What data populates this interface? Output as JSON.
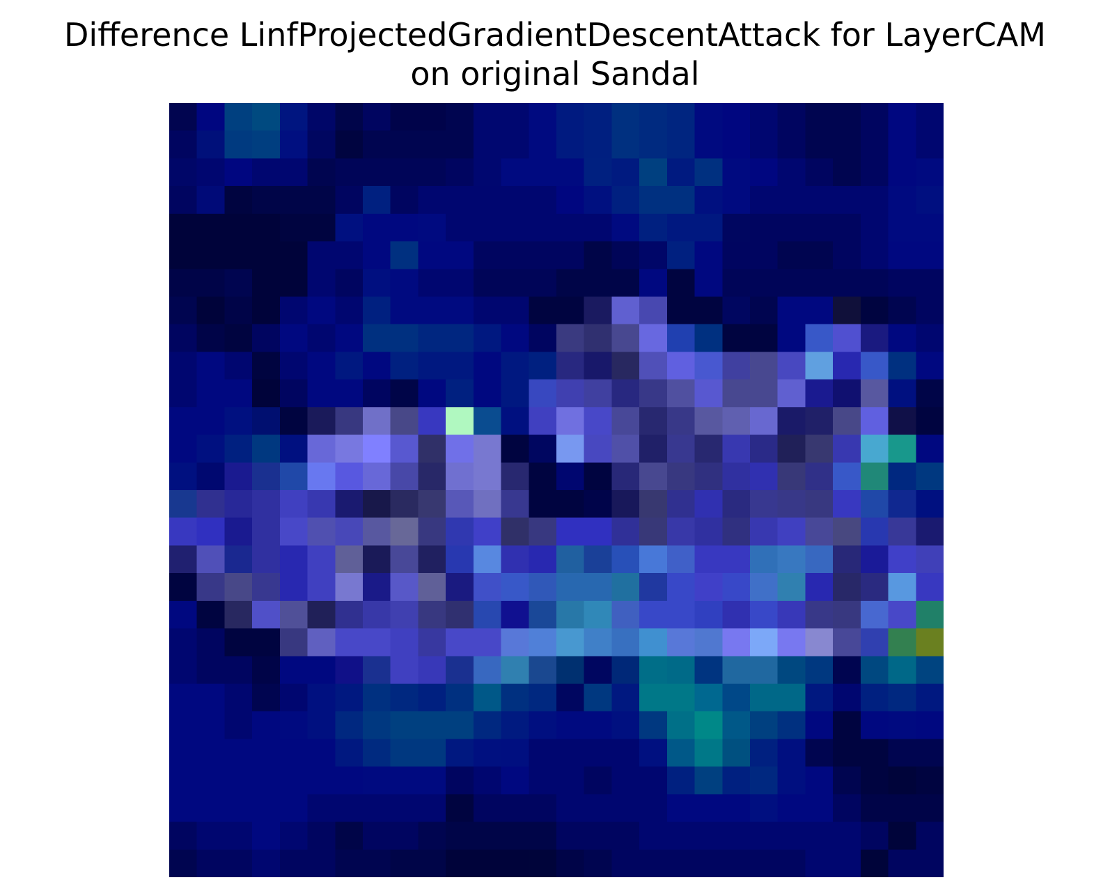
{
  "chart_data": {
    "type": "heatmap",
    "title_line1": "Difference LinfProjectedGradientDescentAttack for LayerCAM",
    "title_line2": "on original Sandal",
    "xlabel": "",
    "ylabel": "",
    "axes_visible": false,
    "grid": false,
    "legend": "none",
    "rows": 28,
    "cols": 28,
    "pixels": [
      [
        "#010550",
        "#000680",
        "#004080",
        "#004a80",
        "#001580",
        "#000668",
        "#00054a",
        "#000560",
        "#00034a",
        "#00034a",
        "#000550",
        "#000770",
        "#000770",
        "#000a80",
        "#001a80",
        "#001f80",
        "#003080",
        "#002a80",
        "#002580",
        "#000a80",
        "#000680",
        "#000670",
        "#000560",
        "#000550",
        "#000550",
        "#000560",
        "#000780",
        "#000670"
      ],
      [
        "#000560",
        "#00107a",
        "#003a80",
        "#003e80",
        "#000f80",
        "#000660",
        "#000440",
        "#000550",
        "#000550",
        "#000550",
        "#000550",
        "#000770",
        "#000770",
        "#000a80",
        "#001a80",
        "#001f80",
        "#003080",
        "#002a80",
        "#002580",
        "#000a80",
        "#000680",
        "#000670",
        "#000560",
        "#000550",
        "#000550",
        "#000560",
        "#000780",
        "#000670"
      ],
      [
        "#000668",
        "#000670",
        "#000680",
        "#000670",
        "#000670",
        "#000550",
        "#000558",
        "#000558",
        "#000558",
        "#000558",
        "#000560",
        "#000770",
        "#000a80",
        "#000a80",
        "#000a80",
        "#002080",
        "#001a80",
        "#004080",
        "#001a80",
        "#003080",
        "#000a80",
        "#000680",
        "#000670",
        "#000560",
        "#000550",
        "#000560",
        "#000780",
        "#000a80"
      ],
      [
        "#000560",
        "#000a78",
        "#000440",
        "#000548",
        "#000548",
        "#000548",
        "#000560",
        "#002080",
        "#000560",
        "#000670",
        "#000670",
        "#000670",
        "#000670",
        "#000670",
        "#000680",
        "#001080",
        "#002080",
        "#003080",
        "#003080",
        "#001080",
        "#000a80",
        "#000670",
        "#000670",
        "#000670",
        "#000670",
        "#000670",
        "#000a80",
        "#000f80"
      ],
      [
        "#00033a",
        "#00033a",
        "#00033a",
        "#00033a",
        "#000440",
        "#000440",
        "#001080",
        "#000880",
        "#000880",
        "#000a80",
        "#000670",
        "#000670",
        "#000670",
        "#000670",
        "#000670",
        "#000670",
        "#000a80",
        "#002080",
        "#001880",
        "#001880",
        "#000660",
        "#000560",
        "#000560",
        "#000560",
        "#000560",
        "#000670",
        "#000a80",
        "#000a80"
      ],
      [
        "#00033a",
        "#00033a",
        "#00033a",
        "#00033a",
        "#00033a",
        "#000670",
        "#000670",
        "#000880",
        "#003080",
        "#000880",
        "#000880",
        "#000560",
        "#000560",
        "#000560",
        "#000560",
        "#000548",
        "#000558",
        "#000668",
        "#002080",
        "#000880",
        "#000560",
        "#000560",
        "#000550",
        "#000550",
        "#000560",
        "#000670",
        "#000880",
        "#000880"
      ],
      [
        "#000448",
        "#000448",
        "#000550",
        "#00033a",
        "#00033a",
        "#000670",
        "#000560",
        "#000f80",
        "#000a80",
        "#000670",
        "#000670",
        "#000558",
        "#000558",
        "#000558",
        "#000548",
        "#000548",
        "#000548",
        "#000880",
        "#000440",
        "#000880",
        "#000558",
        "#000558",
        "#000558",
        "#000558",
        "#000558",
        "#000558",
        "#000560",
        "#000560"
      ],
      [
        "#000550",
        "#00033a",
        "#000448",
        "#00033a",
        "#000670",
        "#000880",
        "#000670",
        "#002080",
        "#000a80",
        "#000a80",
        "#000a80",
        "#000670",
        "#000670",
        "#000440",
        "#000440",
        "#1a1a60",
        "#6060d0",
        "#4848b0",
        "#000440",
        "#000440",
        "#000660",
        "#000550",
        "#000880",
        "#000880",
        "#10103a",
        "#000440",
        "#000550",
        "#000560"
      ],
      [
        "#000560",
        "#000448",
        "#000440",
        "#000560",
        "#000880",
        "#000670",
        "#000880",
        "#003080",
        "#003080",
        "#002680",
        "#002680",
        "#001880",
        "#000880",
        "#000560",
        "#3a3a80",
        "#303070",
        "#484890",
        "#6868e0",
        "#2040b0",
        "#003080",
        "#000440",
        "#000440",
        "#000880",
        "#3858c8",
        "#5050d0",
        "#1a1a80",
        "#000880",
        "#000670"
      ],
      [
        "#000670",
        "#000880",
        "#000670",
        "#000440",
        "#000670",
        "#000880",
        "#001880",
        "#000880",
        "#002080",
        "#001880",
        "#001880",
        "#000880",
        "#001880",
        "#002080",
        "#282880",
        "#18186a",
        "#282860",
        "#5050b8",
        "#6060e0",
        "#4858d0",
        "#4040a0",
        "#484890",
        "#4848c0",
        "#60a0e0",
        "#2828b0",
        "#3858c8",
        "#003080",
        "#000880"
      ],
      [
        "#000670",
        "#000880",
        "#000880",
        "#00033a",
        "#000560",
        "#000880",
        "#000880",
        "#000560",
        "#000548",
        "#000880",
        "#002080",
        "#000880",
        "#001880",
        "#3848c0",
        "#4040b0",
        "#4040a0",
        "#282880",
        "#383888",
        "#5050a0",
        "#5858d0",
        "#484890",
        "#484890",
        "#6060d0",
        "#1a1a90",
        "#101070",
        "#5858a0",
        "#001080",
        "#000548"
      ],
      [
        "#000880",
        "#000880",
        "#001080",
        "#000f70",
        "#000440",
        "#1a1a5a",
        "#383880",
        "#7070c8",
        "#484888",
        "#3838c0",
        "#b0f8c0",
        "#0a4c90",
        "#001080",
        "#4040c0",
        "#7070e0",
        "#4848c8",
        "#484898",
        "#282870",
        "#383888",
        "#5858a0",
        "#6060b0",
        "#6868d0",
        "#1a1a68",
        "#202068",
        "#484888",
        "#6060e0",
        "#101048",
        "#000440"
      ],
      [
        "#000880",
        "#001080",
        "#002080",
        "#003880",
        "#001080",
        "#6868d8",
        "#7878e0",
        "#8080ff",
        "#5858d0",
        "#303068",
        "#7070e8",
        "#7878d0",
        "#000440",
        "#000660",
        "#7898f0",
        "#4848c0",
        "#5050a8",
        "#202068",
        "#383890",
        "#282870",
        "#3838b0",
        "#2a2a88",
        "#202058",
        "#383870",
        "#3838b0",
        "#48a8d0",
        "#18988c",
        "#000880"
      ],
      [
        "#001080",
        "#000870",
        "#1a1a90",
        "#1a3090",
        "#2048a8",
        "#6878f0",
        "#5858e0",
        "#6868d8",
        "#4848a8",
        "#282868",
        "#7070d0",
        "#7878d0",
        "#282870",
        "#000440",
        "#000670",
        "#000440",
        "#282878",
        "#484890",
        "#383880",
        "#303080",
        "#3030a0",
        "#3030b0",
        "#383878",
        "#303088",
        "#3858c8",
        "#208878",
        "#002880",
        "#003880"
      ],
      [
        "#183890",
        "#303090",
        "#282898",
        "#3030a0",
        "#4040c0",
        "#3838b0",
        "#1a1a70",
        "#18184a",
        "#2a2a60",
        "#383870",
        "#5858b8",
        "#7070c0",
        "#383890",
        "#000440",
        "#000440",
        "#00044a",
        "#18185a",
        "#383870",
        "#303090",
        "#3030b0",
        "#2a2a80",
        "#383890",
        "#383888",
        "#383880",
        "#3838c0",
        "#2048a8",
        "#102890",
        "#001080"
      ],
      [
        "#3838c0",
        "#3030c0",
        "#1a1a90",
        "#3030a0",
        "#4848c8",
        "#5050b0",
        "#4848b8",
        "#5858a0",
        "#686898",
        "#383880",
        "#3038b0",
        "#4040c8",
        "#303068",
        "#383880",
        "#3030c0",
        "#3030c0",
        "#303098",
        "#383878",
        "#3838a8",
        "#3030a0",
        "#303080",
        "#3838b0",
        "#4040c0",
        "#484898",
        "#484880",
        "#2838b0",
        "#383898",
        "#1a1a70"
      ],
      [
        "#202070",
        "#5050b8",
        "#1a2890",
        "#3030a0",
        "#2828b0",
        "#4040c0",
        "#606098",
        "#1a1a58",
        "#484898",
        "#202060",
        "#2838b0",
        "#5888e0",
        "#3030b0",
        "#2828b0",
        "#2060a0",
        "#1a4098",
        "#2850b8",
        "#4878d8",
        "#4060c8",
        "#3838c0",
        "#3838c0",
        "#3070b8",
        "#3878c0",
        "#3868c0",
        "#282878",
        "#1a1a98",
        "#4040c8",
        "#4040b8"
      ],
      [
        "#000440",
        "#383888",
        "#484888",
        "#383890",
        "#2828b0",
        "#4040c0",
        "#7878d0",
        "#1a1a88",
        "#5858c8",
        "#606098",
        "#1a1a80",
        "#4050c8",
        "#3858c8",
        "#3058b8",
        "#2868b0",
        "#2868b0",
        "#2070a0",
        "#2038a0",
        "#3848c8",
        "#4040c8",
        "#3848c8",
        "#4070c8",
        "#3080b0",
        "#2828b0",
        "#282868",
        "#2a2a80",
        "#5898e0",
        "#3838c0"
      ],
      [
        "#000880",
        "#000440",
        "#282860",
        "#5050c8",
        "#505098",
        "#202058",
        "#303090",
        "#3838a8",
        "#4040b0",
        "#383880",
        "#303070",
        "#2848b0",
        "#101090",
        "#1a4898",
        "#2878a8",
        "#3088b8",
        "#4060c0",
        "#3848c8",
        "#3848c8",
        "#3040c0",
        "#3030b0",
        "#3848c8",
        "#3838b8",
        "#383888",
        "#383880",
        "#4868d0",
        "#4848c8",
        "#208068"
      ],
      [
        "#000670",
        "#000560",
        "#000440",
        "#000440",
        "#383880",
        "#6060c0",
        "#4848c8",
        "#4848c8",
        "#4040c0",
        "#3838a0",
        "#4848c8",
        "#4848c8",
        "#5878d8",
        "#5080d8",
        "#4898d0",
        "#4080c8",
        "#3870c0",
        "#4090d0",
        "#5878d8",
        "#5078d0",
        "#7878f0",
        "#7ca8f8",
        "#7878f0",
        "#8888d0",
        "#484898",
        "#3040b0",
        "#338050",
        "#6a8020"
      ],
      [
        "#000670",
        "#000560",
        "#000560",
        "#000448",
        "#000880",
        "#000880",
        "#101088",
        "#1a3090",
        "#4040c0",
        "#3838b8",
        "#1a3090",
        "#3868c0",
        "#3080b0",
        "#1a4890",
        "#003070",
        "#000660",
        "#002878",
        "#006e88",
        "#006a88",
        "#003480",
        "#2068a0",
        "#2068a0",
        "#004880",
        "#003880",
        "#000550",
        "#004880",
        "#006888",
        "#004480"
      ],
      [
        "#000880",
        "#000880",
        "#000670",
        "#000550",
        "#000670",
        "#001080",
        "#001880",
        "#003080",
        "#002880",
        "#002080",
        "#003080",
        "#005888",
        "#003080",
        "#002880",
        "#000660",
        "#003880",
        "#001880",
        "#007888",
        "#007888",
        "#006890",
        "#004888",
        "#006888",
        "#006888",
        "#001880",
        "#000670",
        "#002080",
        "#002880",
        "#001880"
      ],
      [
        "#000880",
        "#000880",
        "#000670",
        "#000880",
        "#000a80",
        "#001080",
        "#002880",
        "#003880",
        "#004080",
        "#004080",
        "#004080",
        "#002880",
        "#001a80",
        "#000f80",
        "#000a80",
        "#000a80",
        "#001080",
        "#003880",
        "#007088",
        "#008888",
        "#005888",
        "#004080",
        "#003080",
        "#000880",
        "#000440",
        "#000880",
        "#000a80",
        "#000880"
      ],
      [
        "#000880",
        "#000880",
        "#000880",
        "#000880",
        "#000880",
        "#000880",
        "#001880",
        "#002a80",
        "#003880",
        "#003880",
        "#001880",
        "#001080",
        "#000f80",
        "#000670",
        "#000670",
        "#000670",
        "#000670",
        "#001080",
        "#005888",
        "#007888",
        "#005080",
        "#002080",
        "#000f80",
        "#000550",
        "#000440",
        "#000440",
        "#000550",
        "#000550"
      ],
      [
        "#000880",
        "#000880",
        "#000880",
        "#000880",
        "#000880",
        "#000880",
        "#000880",
        "#000a80",
        "#000a80",
        "#000a80",
        "#000560",
        "#000670",
        "#000880",
        "#000670",
        "#000670",
        "#000560",
        "#000670",
        "#000670",
        "#002080",
        "#004080",
        "#002080",
        "#002880",
        "#000f80",
        "#000880",
        "#000550",
        "#000440",
        "#00043a",
        "#000440"
      ],
      [
        "#000880",
        "#000880",
        "#000880",
        "#000880",
        "#000880",
        "#000670",
        "#000670",
        "#000670",
        "#000670",
        "#000670",
        "#000440",
        "#000560",
        "#000560",
        "#000560",
        "#000670",
        "#000670",
        "#000670",
        "#000670",
        "#000880",
        "#000880",
        "#000880",
        "#000f80",
        "#000880",
        "#000880",
        "#000560",
        "#000448",
        "#000448",
        "#000448"
      ],
      [
        "#000560",
        "#000670",
        "#000670",
        "#000880",
        "#000670",
        "#000560",
        "#000548",
        "#000560",
        "#000560",
        "#000550",
        "#000548",
        "#000548",
        "#000548",
        "#000548",
        "#000560",
        "#000560",
        "#000560",
        "#000670",
        "#000670",
        "#000670",
        "#000670",
        "#000670",
        "#000670",
        "#000670",
        "#000670",
        "#000560",
        "#00043a",
        "#000560"
      ],
      [
        "#000550",
        "#000560",
        "#000560",
        "#000670",
        "#000560",
        "#000560",
        "#000550",
        "#000550",
        "#000548",
        "#000548",
        "#00033a",
        "#00033a",
        "#00033a",
        "#00043a",
        "#000448",
        "#000550",
        "#000560",
        "#000560",
        "#000560",
        "#000560",
        "#000560",
        "#000560",
        "#000560",
        "#000670",
        "#000670",
        "#00043a",
        "#000560",
        "#000560"
      ]
    ]
  }
}
